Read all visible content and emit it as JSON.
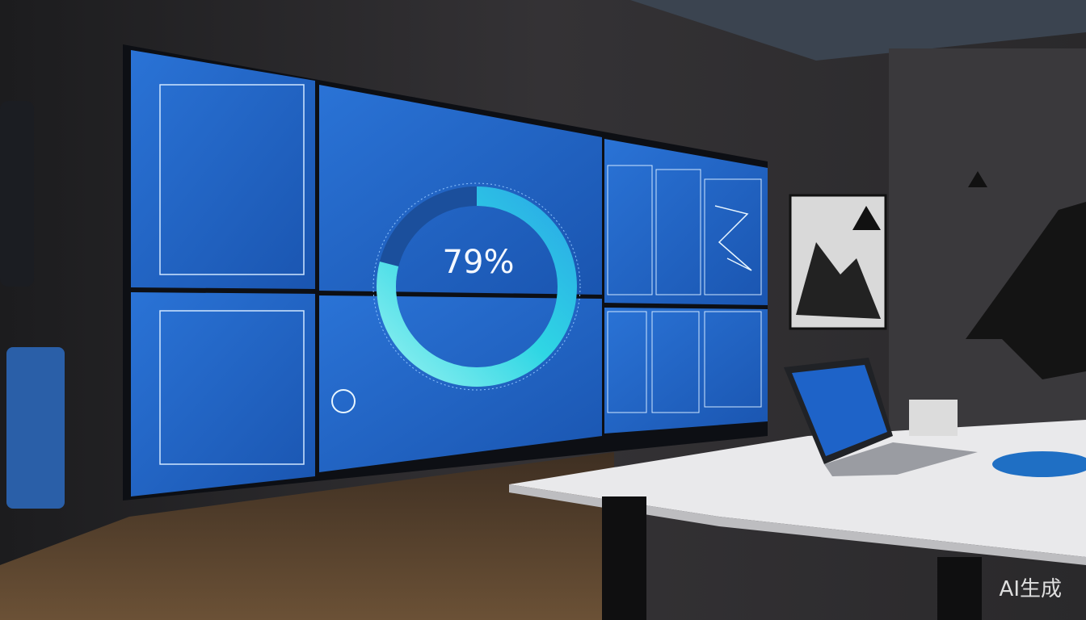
{
  "scene": {
    "gauge_value_label": "79%",
    "gauge_value": 79,
    "watermark": "AI生成",
    "colors": {
      "screen_blue": "#1f63c4",
      "ring_cyan": "#35e0e6",
      "wall": "#2b2a2c",
      "floor": "#5a4530",
      "desk": "#e8e8ea"
    }
  }
}
